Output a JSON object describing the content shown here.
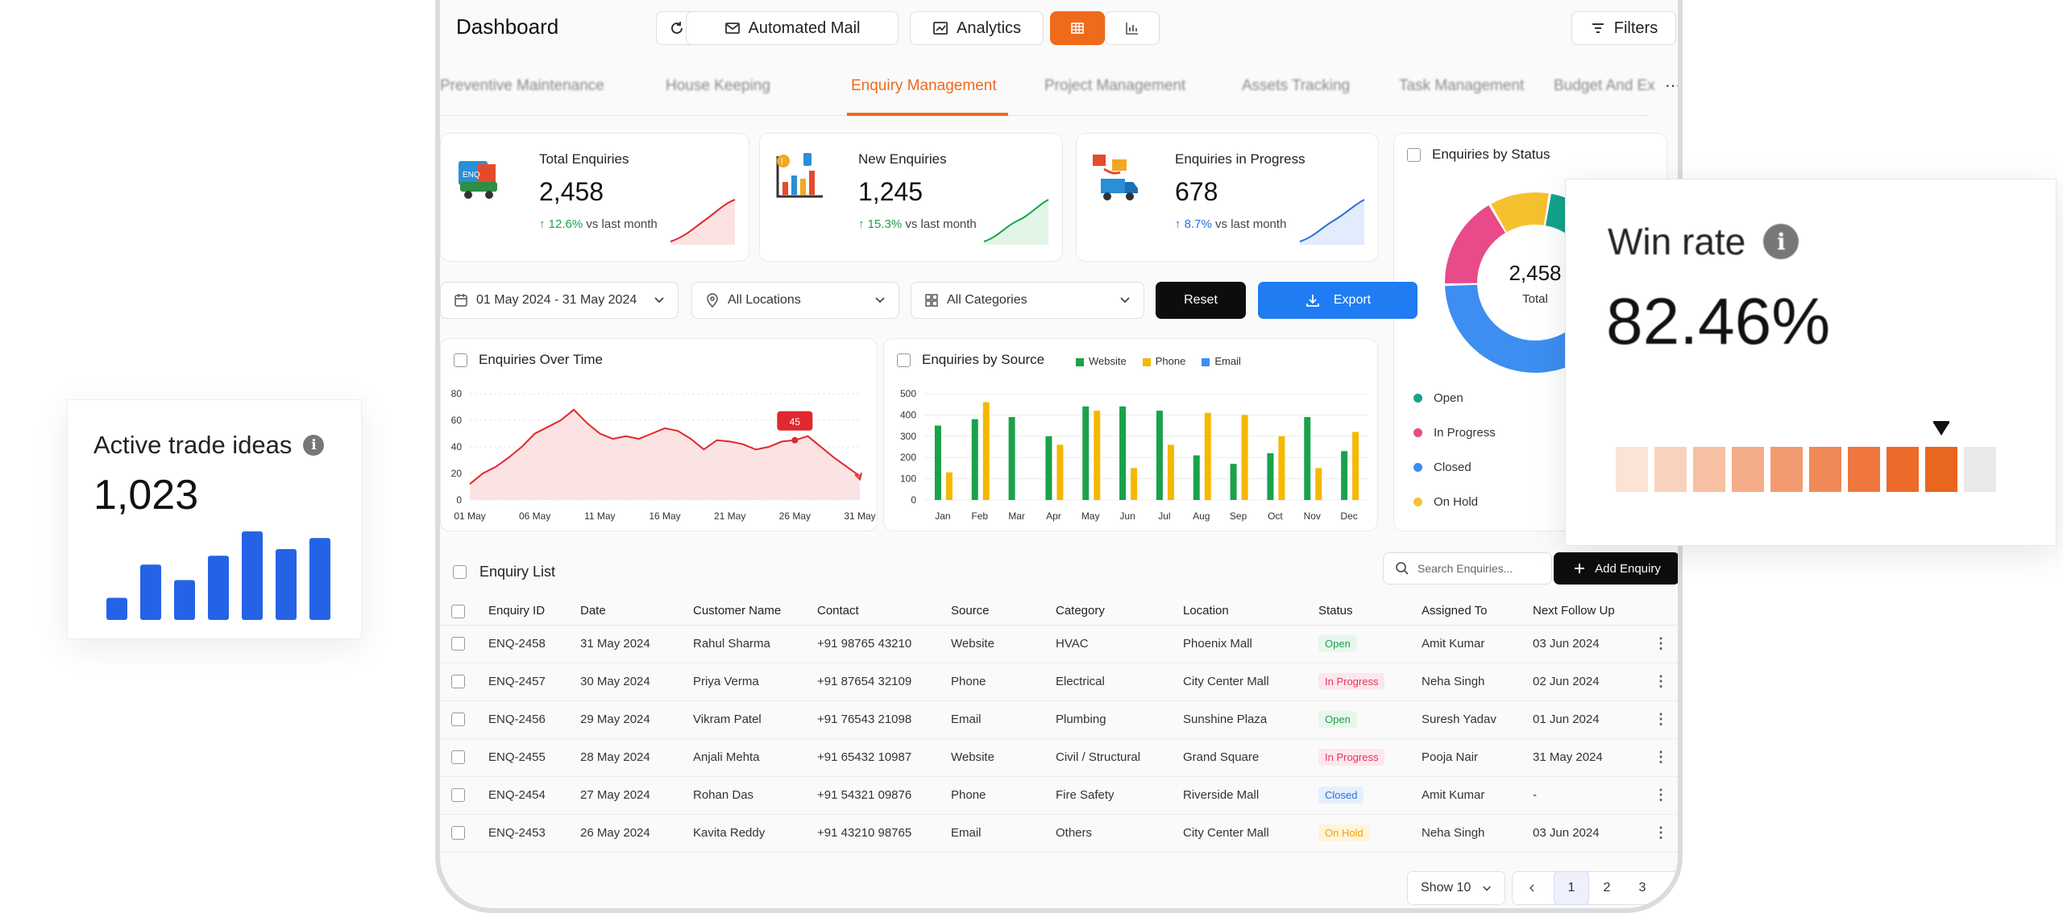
{
  "header": {
    "title": "Dashboard",
    "automated_mail": "Automated Mail",
    "analytics": "Analytics",
    "filters": "Filters"
  },
  "tabs": [
    "Preventive Maintenance",
    "House Keeping",
    "Enquiry Management",
    "Project Management",
    "Assets Tracking",
    "Task Management",
    "Budget And Ex"
  ],
  "active_tab": "Enquiry Management",
  "more": "⋯",
  "kpis": [
    {
      "label": "Total Enquiries",
      "value": "2,458",
      "change": "12.6%",
      "suffix": "vs last month",
      "color": "#1aa24a"
    },
    {
      "label": "New Enquiries",
      "value": "1,245",
      "change": "15.3%",
      "suffix": "vs last month",
      "color": "#1aa24a"
    },
    {
      "label": "Enquiries in Progress",
      "value": "678",
      "change": "8.7%",
      "suffix": "vs last month",
      "color": "#2a6fdb"
    }
  ],
  "filters": {
    "date": "01 May 2024 - 31 May 2024",
    "location": "All Locations",
    "category": "All Categories",
    "reset": "Reset",
    "export": "Export"
  },
  "status_panel": {
    "title": "Enquiries by Status",
    "total": "2,458",
    "total_label": "Total",
    "legend": [
      {
        "name": "Open",
        "color": "#14a38b"
      },
      {
        "name": "In Progress",
        "color": "#e84a8a"
      },
      {
        "name": "Closed",
        "color": "#3d8ef0"
      },
      {
        "name": "On Hold",
        "color": "#f5c12e"
      }
    ]
  },
  "over_time": {
    "title": "Enquiries Over Time"
  },
  "by_source": {
    "title": "Enquiries by Source"
  },
  "chart_data": [
    {
      "type": "line",
      "title": "Enquiries Over Time",
      "x": [
        "01 May",
        "02 May",
        "03 May",
        "04 May",
        "05 May",
        "06 May",
        "07 May",
        "08 May",
        "09 May",
        "10 May",
        "11 May",
        "12 May",
        "13 May",
        "14 May",
        "15 May",
        "16 May",
        "17 May",
        "18 May",
        "19 May",
        "20 May",
        "21 May",
        "22 May",
        "23 May",
        "24 May",
        "25 May",
        "26 May",
        "27 May",
        "28 May",
        "29 May",
        "30 May",
        "31 May"
      ],
      "values": [
        12,
        20,
        25,
        32,
        40,
        50,
        55,
        60,
        68,
        58,
        50,
        46,
        48,
        46,
        50,
        54,
        52,
        46,
        38,
        45,
        44,
        42,
        38,
        40,
        44,
        45,
        48,
        40,
        32,
        25,
        18
      ],
      "xticks": [
        "01 May",
        "06 May",
        "11 May",
        "16 May",
        "21 May",
        "26 May",
        "31 May"
      ],
      "ylim": [
        0,
        80
      ],
      "yticks": [
        0,
        20,
        40,
        60,
        80
      ],
      "annotation": {
        "x": "26 May",
        "label": "45"
      },
      "color": "#e0282e"
    },
    {
      "type": "bar",
      "title": "Enquiries by Source",
      "categories": [
        "Jan",
        "Feb",
        "Mar",
        "Apr",
        "May",
        "Jun",
        "Jul",
        "Aug",
        "Sep",
        "Oct",
        "Nov",
        "Dec"
      ],
      "series": [
        {
          "name": "Website",
          "color": "#1aa24a",
          "values": [
            350,
            380,
            390,
            300,
            440,
            440,
            420,
            210,
            170,
            220,
            390,
            230
          ]
        },
        {
          "name": "Phone",
          "color": "#f5b800",
          "values": [
            130,
            460,
            0,
            260,
            420,
            150,
            260,
            410,
            400,
            300,
            150,
            320
          ]
        },
        {
          "name": "Email",
          "color": "#3d8ef0",
          "values": [
            0,
            0,
            0,
            0,
            0,
            0,
            0,
            0,
            0,
            0,
            0,
            0
          ]
        }
      ],
      "ylim": [
        0,
        500
      ],
      "yticks": [
        0,
        100,
        200,
        300,
        400,
        500
      ]
    },
    {
      "type": "pie",
      "title": "Enquiries by Status",
      "categories": [
        "Open",
        "In Progress",
        "Closed",
        "On Hold"
      ],
      "values": [
        0.38,
        0.17,
        0.34,
        0.11
      ]
    },
    {
      "type": "bar",
      "title": "Active trade ideas",
      "categories": [
        "1",
        "2",
        "3",
        "4",
        "5",
        "6",
        "7"
      ],
      "values": [
        2,
        5,
        3.6,
        5.8,
        8,
        6.4,
        7.4
      ]
    }
  ],
  "enquiry_list": {
    "title": "Enquiry List",
    "search_placeholder": "Search Enquiries...",
    "add_label": "Add Enquiry",
    "columns": [
      "Enquiry ID",
      "Date",
      "Customer Name",
      "Contact",
      "Source",
      "Category",
      "Location",
      "Status",
      "Assigned To",
      "Next Follow Up"
    ],
    "rows": [
      {
        "id": "ENQ-2458",
        "date": "31 May 2024",
        "name": "Rahul Sharma",
        "contact": "+91 98765 43210",
        "source": "Website",
        "category": "HVAC",
        "location": "Phoenix Mall",
        "status": "Open",
        "assigned": "Amit Kumar",
        "followup": "03 Jun 2024"
      },
      {
        "id": "ENQ-2457",
        "date": "30 May 2024",
        "name": "Priya Verma",
        "contact": "+91 87654 32109",
        "source": "Phone",
        "category": "Electrical",
        "location": "City Center Mall",
        "status": "In Progress",
        "assigned": "Neha Singh",
        "followup": "02 Jun 2024"
      },
      {
        "id": "ENQ-2456",
        "date": "29 May 2024",
        "name": "Vikram Patel",
        "contact": "+91 76543 21098",
        "source": "Email",
        "category": "Plumbing",
        "location": "Sunshine Plaza",
        "status": "Open",
        "assigned": "Suresh Yadav",
        "followup": "01 Jun 2024"
      },
      {
        "id": "ENQ-2455",
        "date": "28 May 2024",
        "name": "Anjali Mehta",
        "contact": "+91 65432 10987",
        "source": "Website",
        "category": "Civil / Structural",
        "location": "Grand Square",
        "status": "In Progress",
        "assigned": "Pooja Nair",
        "followup": "31 May 2024"
      },
      {
        "id": "ENQ-2454",
        "date": "27 May 2024",
        "name": "Rohan Das",
        "contact": "+91 54321 09876",
        "source": "Phone",
        "category": "Fire Safety",
        "location": "Riverside Mall",
        "status": "Closed",
        "assigned": "Amit Kumar",
        "followup": "-"
      },
      {
        "id": "ENQ-2453",
        "date": "26 May 2024",
        "name": "Kavita Reddy",
        "contact": "+91 43210 98765",
        "source": "Email",
        "category": "Others",
        "location": "City Center Mall",
        "status": "On Hold",
        "assigned": "Neha Singh",
        "followup": "03 Jun 2024"
      }
    ]
  },
  "pagination": {
    "show": "Show 10",
    "pages": [
      "1",
      "2",
      "3"
    ],
    "current": "1"
  },
  "trade_card": {
    "title": "Active trade ideas",
    "value": "1,023"
  },
  "win_card": {
    "title": "Win rate",
    "value": "82.46%",
    "level_fraction": 0.9,
    "segments": 10,
    "filled": 9
  }
}
